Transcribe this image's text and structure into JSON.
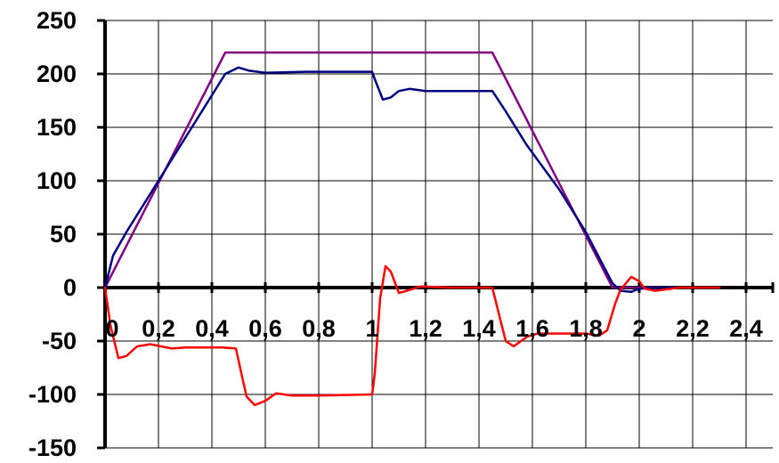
{
  "chart_data": {
    "type": "line",
    "title": "",
    "xlabel": "",
    "ylabel": "",
    "xlim": [
      0,
      2.5
    ],
    "ylim": [
      -150,
      250
    ],
    "grid": true,
    "legend": "none",
    "x_tick_labels": [
      "0",
      "0,2",
      "0,4",
      "0,6",
      "0,8",
      "1",
      "1,2",
      "1,4",
      "1,6",
      "1,8",
      "2",
      "2,2",
      "2,4"
    ],
    "x_tick_values": [
      0,
      0.2,
      0.4,
      0.6,
      0.8,
      1.0,
      1.2,
      1.4,
      1.6,
      1.8,
      2.0,
      2.2,
      2.4
    ],
    "y_tick_labels": [
      "250",
      "200",
      "150",
      "100",
      "50",
      "0",
      "-50",
      "-100",
      "-150"
    ],
    "y_tick_values": [
      250,
      200,
      150,
      100,
      50,
      0,
      -50,
      -100,
      -150
    ],
    "series": [
      {
        "color": "#800080",
        "points": [
          [
            0,
            0
          ],
          [
            0.45,
            220
          ],
          [
            1.45,
            220
          ],
          [
            1.9,
            0
          ],
          [
            2.3,
            0
          ]
        ]
      },
      {
        "color": "#000080",
        "points": [
          [
            0,
            0
          ],
          [
            0.03,
            30
          ],
          [
            0.08,
            52
          ],
          [
            0.2,
            100
          ],
          [
            0.3,
            140
          ],
          [
            0.4,
            180
          ],
          [
            0.45,
            200
          ],
          [
            0.5,
            206
          ],
          [
            0.54,
            203
          ],
          [
            0.6,
            201
          ],
          [
            0.75,
            202
          ],
          [
            1.0,
            202
          ],
          [
            1.01,
            195
          ],
          [
            1.04,
            176
          ],
          [
            1.07,
            178
          ],
          [
            1.1,
            184
          ],
          [
            1.14,
            186
          ],
          [
            1.2,
            184
          ],
          [
            1.35,
            184
          ],
          [
            1.45,
            184
          ],
          [
            1.5,
            165
          ],
          [
            1.58,
            133
          ],
          [
            1.7,
            92
          ],
          [
            1.8,
            52
          ],
          [
            1.85,
            28
          ],
          [
            1.9,
            4
          ],
          [
            1.93,
            -3
          ],
          [
            1.97,
            -4
          ],
          [
            2.0,
            -1
          ],
          [
            2.1,
            0
          ],
          [
            2.3,
            0
          ]
        ]
      },
      {
        "color": "#ff0000",
        "points": [
          [
            0,
            0
          ],
          [
            0.02,
            -35
          ],
          [
            0.05,
            -66
          ],
          [
            0.08,
            -64
          ],
          [
            0.12,
            -55
          ],
          [
            0.17,
            -53
          ],
          [
            0.25,
            -57
          ],
          [
            0.3,
            -56
          ],
          [
            0.44,
            -56
          ],
          [
            0.49,
            -57
          ],
          [
            0.51,
            -80
          ],
          [
            0.53,
            -102
          ],
          [
            0.56,
            -110
          ],
          [
            0.6,
            -106
          ],
          [
            0.64,
            -99
          ],
          [
            0.7,
            -101
          ],
          [
            0.8,
            -101
          ],
          [
            1.0,
            -100
          ],
          [
            1.01,
            -80
          ],
          [
            1.03,
            -10
          ],
          [
            1.05,
            20
          ],
          [
            1.07,
            15
          ],
          [
            1.1,
            -5
          ],
          [
            1.13,
            -3
          ],
          [
            1.18,
            1
          ],
          [
            1.3,
            0
          ],
          [
            1.45,
            0
          ],
          [
            1.47,
            -20
          ],
          [
            1.5,
            -50
          ],
          [
            1.53,
            -55
          ],
          [
            1.58,
            -46
          ],
          [
            1.62,
            -43
          ],
          [
            1.8,
            -43
          ],
          [
            1.85,
            -45
          ],
          [
            1.88,
            -40
          ],
          [
            1.91,
            -15
          ],
          [
            1.93,
            -2
          ],
          [
            1.97,
            10
          ],
          [
            2.0,
            6
          ],
          [
            2.02,
            -1
          ],
          [
            2.06,
            -3
          ],
          [
            2.15,
            0
          ],
          [
            2.3,
            0
          ]
        ]
      }
    ]
  }
}
